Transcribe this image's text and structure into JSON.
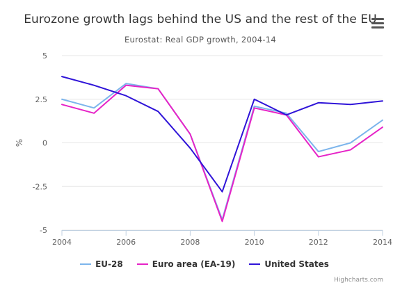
{
  "chart_data": {
    "type": "line",
    "title": "Eurozone growth lags behind the US and the rest of the EU",
    "subtitle": "Eurostat: Real GDP growth, 2004-14",
    "ylabel": "%",
    "xlabel": "",
    "x": [
      2004,
      2005,
      2006,
      2007,
      2008,
      2009,
      2010,
      2011,
      2012,
      2013,
      2014
    ],
    "xlim": [
      2004,
      2014
    ],
    "xticks": [
      "2004",
      "2006",
      "2008",
      "2010",
      "2012",
      "2014"
    ],
    "ylim": [
      -5,
      5
    ],
    "yticks": [
      "5",
      "2.5",
      "0",
      "-2.5",
      "-5"
    ],
    "grid": true,
    "legend_position": "bottom",
    "series": [
      {
        "name": "EU-28",
        "color": "#7cb5ec",
        "values": [
          2.5,
          2.0,
          3.4,
          3.1,
          0.5,
          -4.4,
          2.1,
          1.7,
          -0.5,
          0.0,
          1.3
        ]
      },
      {
        "name": "Euro area (EA-19)",
        "color": "#e623c7",
        "values": [
          2.2,
          1.7,
          3.3,
          3.1,
          0.5,
          -4.5,
          2.0,
          1.6,
          -0.8,
          -0.4,
          0.9
        ]
      },
      {
        "name": "United States",
        "color": "#2f14d8",
        "values": [
          3.8,
          3.3,
          2.7,
          1.8,
          -0.3,
          -2.8,
          2.5,
          1.6,
          2.3,
          2.2,
          2.4
        ]
      }
    ]
  },
  "menu": {
    "icon": "hamburger-menu-icon"
  },
  "credits": "Highcharts.com"
}
